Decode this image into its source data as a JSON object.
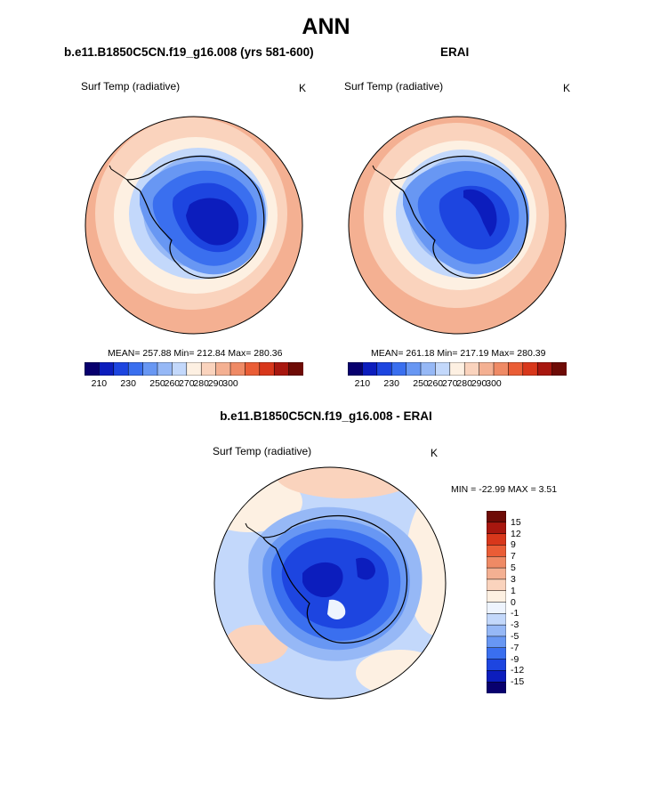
{
  "title": "ANN",
  "colors": {
    "abs_scale": [
      "#08006e",
      "#0c1dbd",
      "#1d45e0",
      "#3a6fef",
      "#6897f3",
      "#96b8f6",
      "#c3d8fb",
      "#fdf0e2",
      "#fad3bd",
      "#f4b092",
      "#ef8a65",
      "#ea5d36",
      "#d8371b",
      "#a8170f",
      "#6e0b06"
    ],
    "diff_scale": [
      "#08006e",
      "#0c1dbd",
      "#1d45e0",
      "#3a6fef",
      "#6897f3",
      "#96b8f6",
      "#c3d8fb",
      "#eef4fe",
      "#fdf0e2",
      "#fad3bd",
      "#f4b092",
      "#ef8a65",
      "#ea5d36",
      "#d8371b",
      "#a8170f",
      "#6e0b06"
    ]
  },
  "panels": {
    "model": {
      "title": "b.e11.B1850C5CN.f19_g16.008 (yrs 581-600)",
      "variable": "Surf Temp (radiative)",
      "units": "K",
      "stats": "MEAN= 257.88  Min= 212.84  Max= 280.36",
      "colorbar_ticks": [
        "210",
        "230",
        "250",
        "260",
        "270",
        "280",
        "290",
        "300"
      ]
    },
    "obs": {
      "title": "ERAI",
      "variable": "Surf Temp (radiative)",
      "units": "K",
      "stats": "MEAN= 261.18  Min= 217.19  Max= 280.39",
      "colorbar_ticks": [
        "210",
        "230",
        "250",
        "260",
        "270",
        "280",
        "290",
        "300"
      ]
    },
    "diff": {
      "title": "b.e11.B1850C5CN.f19_g16.008 - ERAI",
      "variable": "Surf Temp (radiative)",
      "units": "K",
      "stats": "MIN = -22.99 MAX =   3.51",
      "colorbar_ticks": [
        "15",
        "12",
        "9",
        "7",
        "5",
        "3",
        "1",
        "0",
        "-1",
        "-3",
        "-5",
        "-7",
        "-9",
        "-12",
        "-15"
      ]
    }
  },
  "chart_data": [
    {
      "type": "heatmap",
      "projection": "south polar stereographic",
      "title": "b.e11.B1850C5CN.f19_g16.008 (yrs 581-600)",
      "field": "Surf Temp (radiative)",
      "units": "K",
      "mean": 257.88,
      "min": 212.84,
      "max": 280.36,
      "color_levels": [
        210,
        220,
        230,
        240,
        250,
        255,
        260,
        265,
        270,
        275,
        280,
        285,
        290,
        295,
        300
      ]
    },
    {
      "type": "heatmap",
      "projection": "south polar stereographic",
      "title": "ERAI",
      "field": "Surf Temp (radiative)",
      "units": "K",
      "mean": 261.18,
      "min": 217.19,
      "max": 280.39,
      "color_levels": [
        210,
        220,
        230,
        240,
        250,
        255,
        260,
        265,
        270,
        275,
        280,
        285,
        290,
        295,
        300
      ]
    },
    {
      "type": "heatmap",
      "projection": "south polar stereographic",
      "title": "b.e11.B1850C5CN.f19_g16.008 - ERAI",
      "field": "Surf Temp (radiative)",
      "units": "K",
      "min": -22.99,
      "max": 3.51,
      "color_levels": [
        -15,
        -12,
        -9,
        -7,
        -5,
        -3,
        -1,
        0,
        1,
        3,
        5,
        7,
        9,
        12,
        15
      ]
    }
  ]
}
